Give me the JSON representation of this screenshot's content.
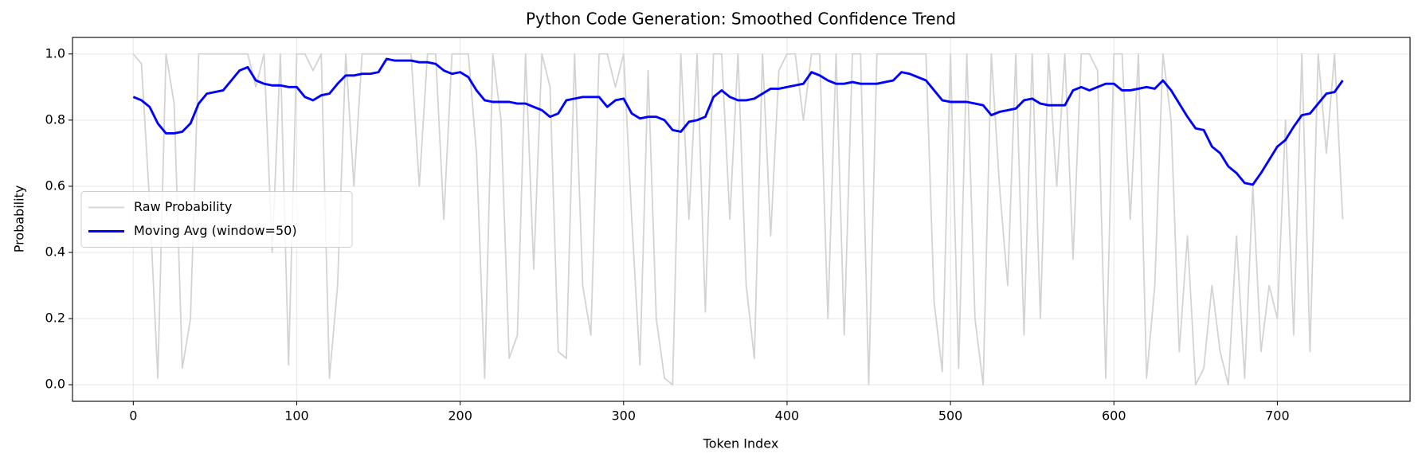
{
  "chart_data": {
    "type": "line",
    "title": "Python Code Generation: Smoothed Confidence Trend",
    "x_label": "Token Index",
    "y_label": "Probability",
    "x": [
      0,
      5,
      10,
      15,
      20,
      25,
      30,
      35,
      40,
      45,
      50,
      55,
      60,
      65,
      70,
      75,
      80,
      85,
      90,
      95,
      100,
      105,
      110,
      115,
      120,
      125,
      130,
      135,
      140,
      145,
      150,
      155,
      160,
      165,
      170,
      175,
      180,
      185,
      190,
      195,
      200,
      205,
      210,
      215,
      220,
      225,
      230,
      235,
      240,
      245,
      250,
      255,
      260,
      265,
      270,
      275,
      280,
      285,
      290,
      295,
      300,
      305,
      310,
      315,
      320,
      325,
      330,
      335,
      340,
      345,
      350,
      355,
      360,
      365,
      370,
      375,
      380,
      385,
      390,
      395,
      400,
      405,
      410,
      415,
      420,
      425,
      430,
      435,
      440,
      445,
      450,
      455,
      460,
      465,
      470,
      475,
      480,
      485,
      490,
      495,
      500,
      505,
      510,
      515,
      520,
      525,
      530,
      535,
      540,
      545,
      550,
      555,
      560,
      565,
      570,
      575,
      580,
      585,
      590,
      595,
      600,
      605,
      610,
      615,
      620,
      625,
      630,
      635,
      640,
      645,
      650,
      655,
      660,
      665,
      670,
      675,
      680,
      685,
      690,
      695,
      700,
      705,
      710,
      715,
      720,
      725,
      730,
      735,
      740
    ],
    "series": [
      {
        "name": "Raw Probability",
        "color": "#d3d3d3",
        "values": [
          1.0,
          0.97,
          0.55,
          0.02,
          1.0,
          0.85,
          0.05,
          0.2,
          1.0,
          1.0,
          1.0,
          1.0,
          1.0,
          1.0,
          1.0,
          0.9,
          1.0,
          0.4,
          1.0,
          0.06,
          1.0,
          1.0,
          0.95,
          1.0,
          0.02,
          0.3,
          1.0,
          0.6,
          1.0,
          1.0,
          1.0,
          1.0,
          1.0,
          1.0,
          1.0,
          0.6,
          1.0,
          1.0,
          0.5,
          1.0,
          1.0,
          1.0,
          0.7,
          0.02,
          1.0,
          0.8,
          0.08,
          0.15,
          1.0,
          0.35,
          1.0,
          0.9,
          0.1,
          0.08,
          1.0,
          0.3,
          0.15,
          1.0,
          1.0,
          0.9,
          1.0,
          0.5,
          0.06,
          0.95,
          0.2,
          0.02,
          0.0,
          1.0,
          0.5,
          1.0,
          0.22,
          1.0,
          1.0,
          0.5,
          1.0,
          0.3,
          0.08,
          1.0,
          0.45,
          0.95,
          1.0,
          1.0,
          0.8,
          1.0,
          1.0,
          0.2,
          1.0,
          0.15,
          1.0,
          1.0,
          0.0,
          1.0,
          1.0,
          1.0,
          1.0,
          1.0,
          1.0,
          1.0,
          0.25,
          0.04,
          1.0,
          0.05,
          1.0,
          0.2,
          0.0,
          1.0,
          0.6,
          0.3,
          1.0,
          0.15,
          1.0,
          0.2,
          1.0,
          0.6,
          1.0,
          0.38,
          1.0,
          1.0,
          0.95,
          0.02,
          1.0,
          1.0,
          0.5,
          1.0,
          0.02,
          0.3,
          1.0,
          0.8,
          0.1,
          0.45,
          0.0,
          0.05,
          0.3,
          0.1,
          0.0,
          0.45,
          0.02,
          0.6,
          0.1,
          0.3,
          0.2,
          0.8,
          0.15,
          1.0,
          0.1,
          1.0,
          0.7,
          1.0,
          0.5
        ]
      },
      {
        "name": "Moving Avg (window=50)",
        "color": "#0000ff",
        "values": [
          0.87,
          0.86,
          0.84,
          0.79,
          0.76,
          0.76,
          0.765,
          0.79,
          0.85,
          0.88,
          0.885,
          0.89,
          0.92,
          0.95,
          0.96,
          0.92,
          0.91,
          0.905,
          0.905,
          0.9,
          0.9,
          0.87,
          0.86,
          0.875,
          0.88,
          0.91,
          0.935,
          0.935,
          0.94,
          0.94,
          0.945,
          0.985,
          0.98,
          0.98,
          0.98,
          0.975,
          0.975,
          0.97,
          0.95,
          0.94,
          0.945,
          0.93,
          0.89,
          0.86,
          0.855,
          0.855,
          0.855,
          0.85,
          0.85,
          0.84,
          0.83,
          0.81,
          0.82,
          0.86,
          0.865,
          0.87,
          0.87,
          0.87,
          0.84,
          0.86,
          0.865,
          0.82,
          0.805,
          0.81,
          0.81,
          0.8,
          0.77,
          0.765,
          0.795,
          0.8,
          0.81,
          0.87,
          0.89,
          0.87,
          0.86,
          0.86,
          0.865,
          0.88,
          0.895,
          0.895,
          0.9,
          0.905,
          0.91,
          0.945,
          0.935,
          0.92,
          0.91,
          0.91,
          0.915,
          0.91,
          0.91,
          0.91,
          0.915,
          0.92,
          0.945,
          0.94,
          0.93,
          0.92,
          0.89,
          0.86,
          0.855,
          0.855,
          0.855,
          0.85,
          0.845,
          0.815,
          0.825,
          0.83,
          0.835,
          0.86,
          0.865,
          0.85,
          0.845,
          0.845,
          0.845,
          0.89,
          0.9,
          0.89,
          0.9,
          0.91,
          0.91,
          0.89,
          0.89,
          0.895,
          0.9,
          0.895,
          0.92,
          0.89,
          0.85,
          0.81,
          0.775,
          0.77,
          0.72,
          0.7,
          0.66,
          0.64,
          0.61,
          0.605,
          0.64,
          0.68,
          0.72,
          0.74,
          0.78,
          0.815,
          0.82,
          0.85,
          0.88,
          0.885,
          0.92
        ]
      }
    ],
    "xlim": [
      -37.2,
      781.2
    ],
    "ylim": [
      -0.05,
      1.05
    ],
    "xticks": [
      0,
      100,
      200,
      300,
      400,
      500,
      600,
      700
    ],
    "yticks": [
      {
        "value": 0.0,
        "label": "0.0"
      },
      0.2,
      0.4,
      0.6,
      0.8,
      {
        "value": 1.0,
        "label": "1.0"
      }
    ],
    "grid": true,
    "legend": "center left"
  }
}
